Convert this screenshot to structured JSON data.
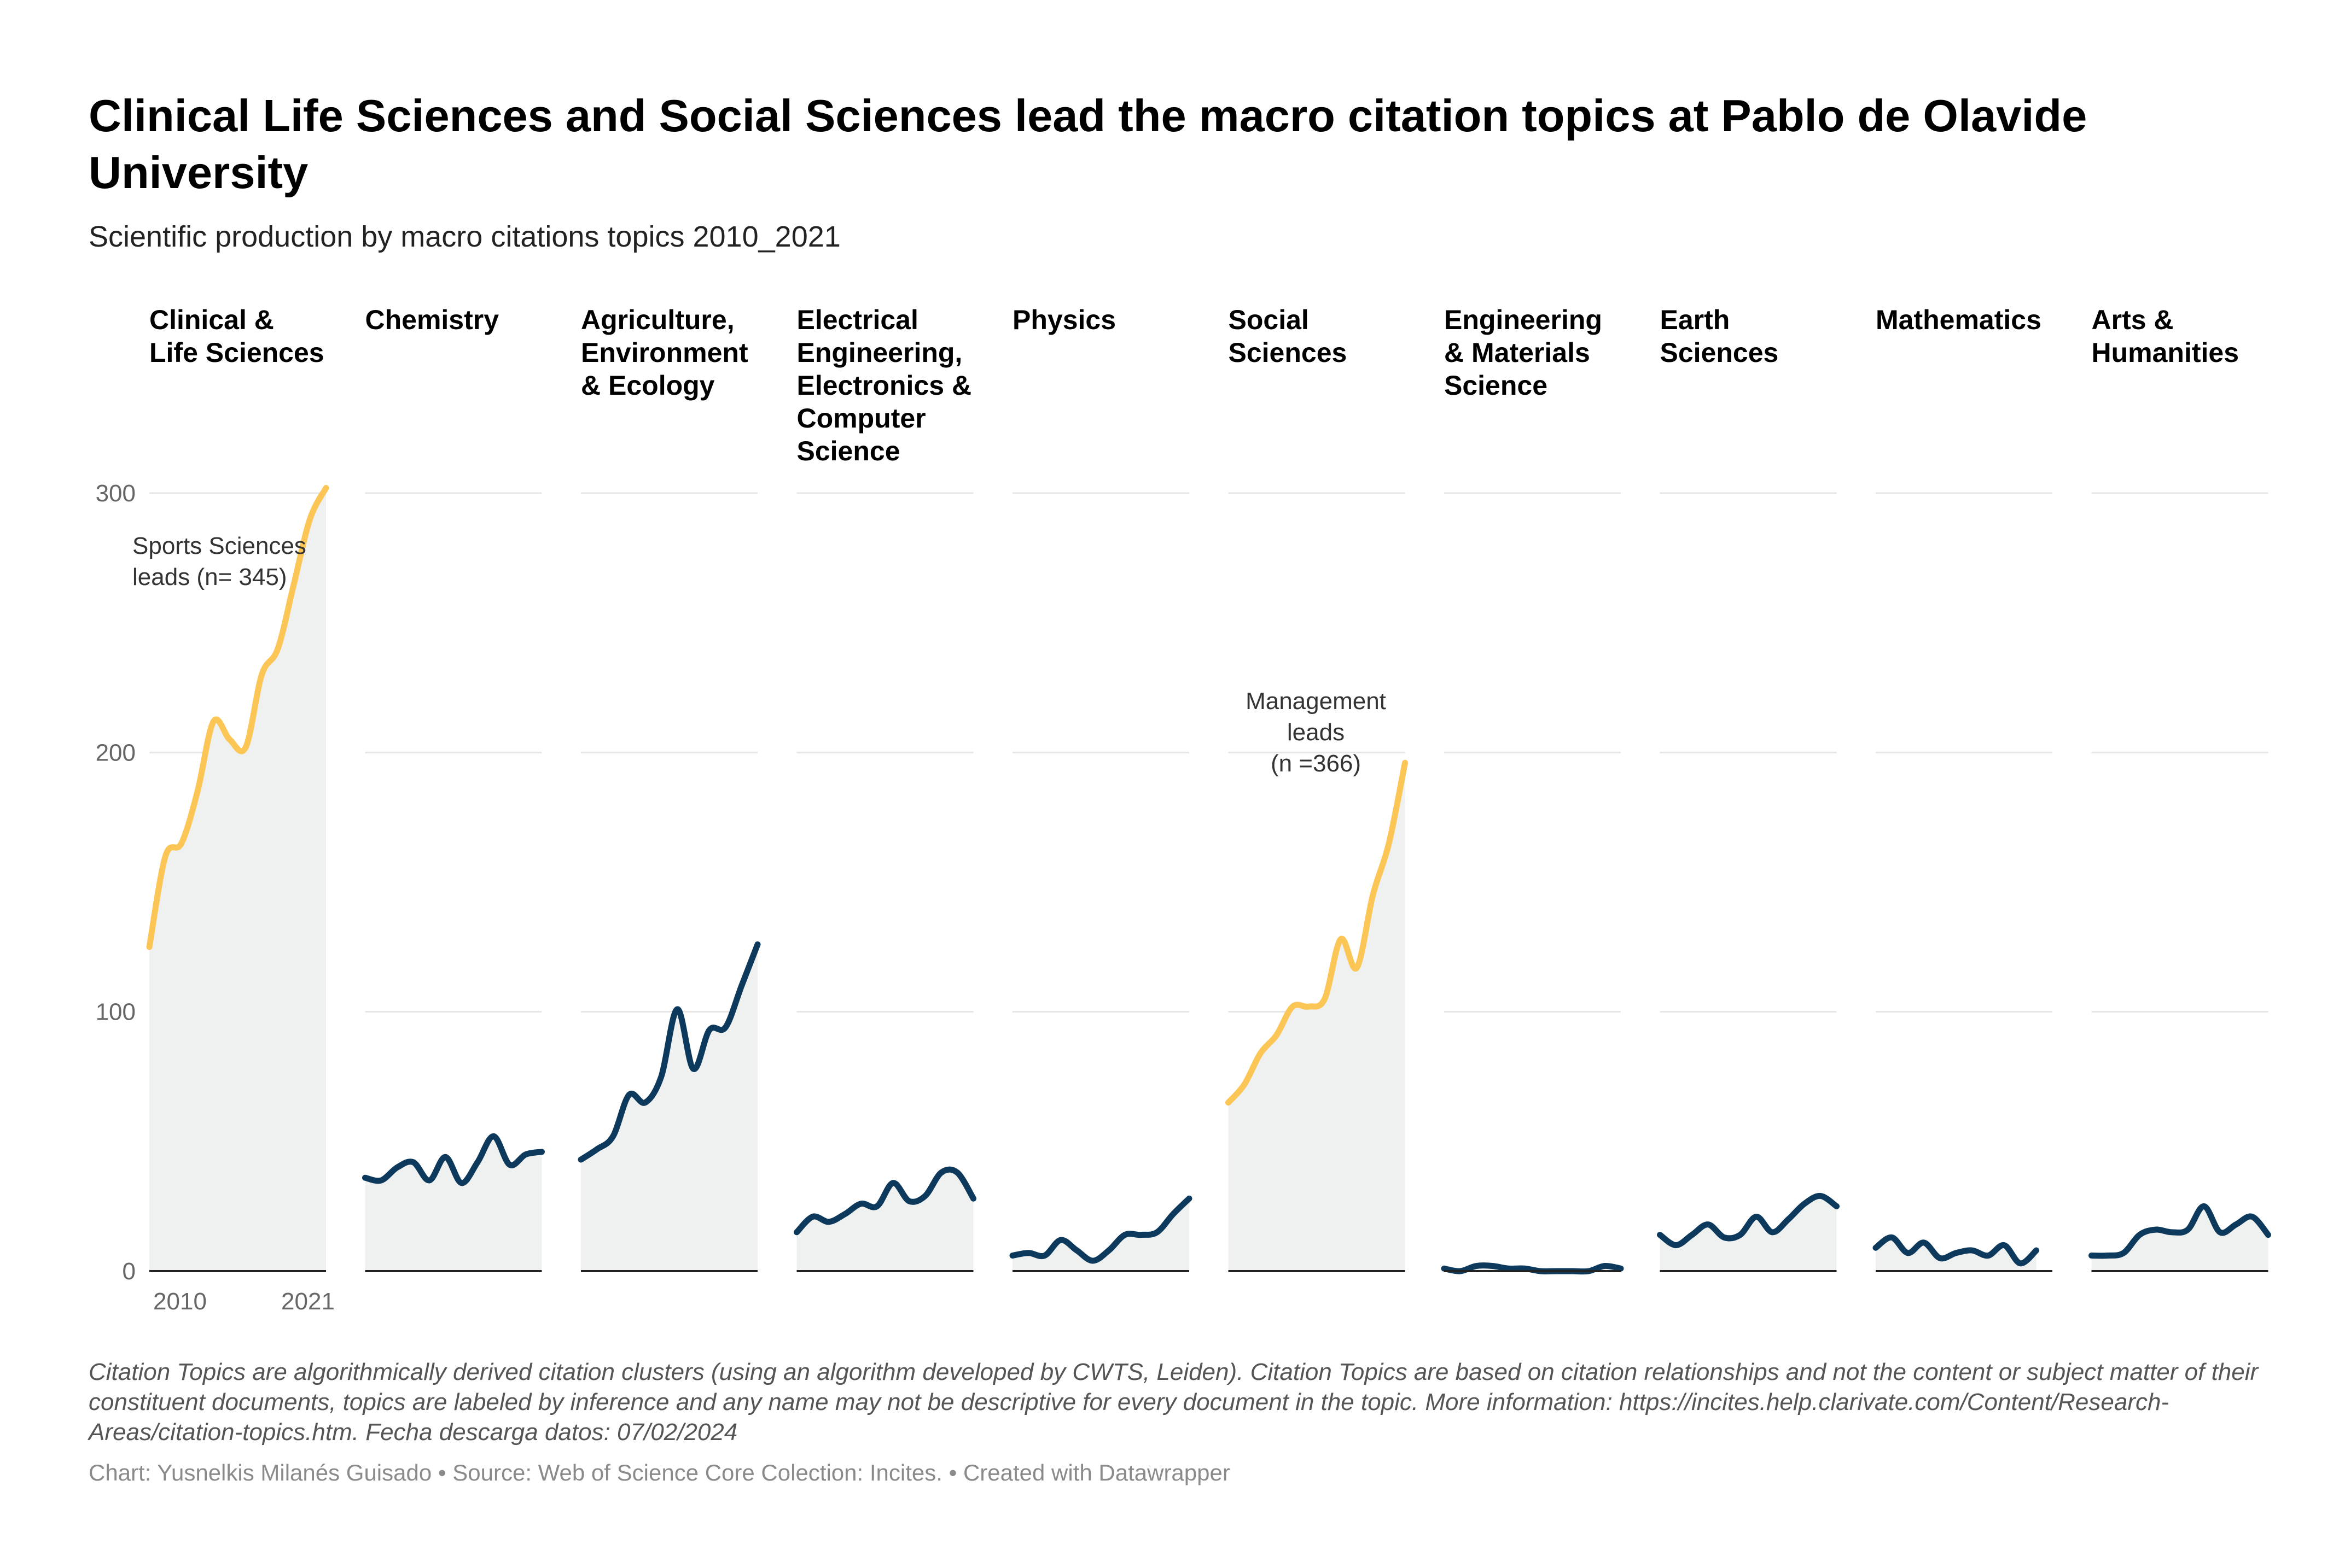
{
  "title": "Clinical Life Sciences and Social Sciences lead the macro citation topics at Pablo de Olavide University",
  "subtitle": "Scientific production by macro citations topics 2010_2021",
  "colors": {
    "highlight": "#fcc656",
    "normal": "#0d3a5c",
    "area": "#eff0f0",
    "grid": "#e6e6e6",
    "axis": "#222222"
  },
  "chart_data": {
    "type": "area",
    "layout": "small-multiples",
    "x": [
      2010,
      2011,
      2012,
      2013,
      2014,
      2015,
      2016,
      2017,
      2018,
      2019,
      2020,
      2021
    ],
    "x_tick_labels": [
      "2010",
      "2021"
    ],
    "ylim": [
      0,
      300
    ],
    "y_ticks": [
      0,
      100,
      200,
      300
    ],
    "grid": true,
    "panels": [
      {
        "name": "Clinical &\nLife Sciences",
        "highlight": true,
        "values": [
          125,
          160,
          165,
          185,
          212,
          205,
          202,
          230,
          240,
          265,
          290,
          302
        ],
        "annotation": [
          "Sports Sciences",
          "leads (n= 345)"
        ]
      },
      {
        "name": "Chemistry",
        "highlight": false,
        "values": [
          36,
          35,
          40,
          42,
          35,
          44,
          34,
          42,
          52,
          41,
          45,
          46
        ]
      },
      {
        "name": "Agriculture,\nEnvironment\n& Ecology",
        "highlight": false,
        "values": [
          43,
          47,
          52,
          68,
          65,
          75,
          101,
          78,
          93,
          94,
          110,
          126
        ]
      },
      {
        "name": " Electrical\nEngineering,\nElectronics &\nComputer\nScience",
        "highlight": false,
        "values": [
          15,
          21,
          19,
          22,
          26,
          25,
          34,
          27,
          29,
          38,
          38,
          28
        ]
      },
      {
        "name": "Physics",
        "highlight": false,
        "values": [
          6,
          7,
          6,
          12,
          8,
          4,
          8,
          14,
          14,
          15,
          22,
          28
        ]
      },
      {
        "name": "Social\nSciences",
        "highlight": true,
        "values": [
          65,
          72,
          84,
          91,
          102,
          102,
          105,
          128,
          117,
          145,
          165,
          196
        ],
        "annotation": [
          "Management",
          "leads",
          "(n =366)"
        ]
      },
      {
        "name": "Engineering\n& Materials\nScience",
        "highlight": false,
        "values": [
          1,
          0,
          2,
          2,
          1,
          1,
          0,
          0,
          0,
          0,
          2,
          1
        ]
      },
      {
        "name": "Earth\nSciences",
        "highlight": false,
        "values": [
          14,
          10,
          14,
          18,
          13,
          14,
          21,
          15,
          20,
          26,
          29,
          25
        ]
      },
      {
        "name": "Mathematics",
        "highlight": false,
        "values": [
          9,
          13,
          7,
          11,
          5,
          7,
          8,
          6,
          10,
          3,
          8,
          null
        ]
      },
      {
        "name": "Arts &\nHumanities",
        "highlight": false,
        "values": [
          6,
          6,
          7,
          14,
          16,
          15,
          16,
          25,
          15,
          18,
          21,
          14
        ]
      }
    ]
  },
  "notes": "Citation Topics are algorithmically derived citation clusters (using an algorithm developed by CWTS, Leiden). Citation Topics are based on citation relationships and not the content or subject matter of their constituent documents, topics are labeled by inference and any name may not be descriptive for every document in the topic. More information: https://incites.help.clarivate.com/Content/Research-Areas/citation-topics.htm. Fecha descarga datos: 07/02/2024",
  "footer": "Chart: Yusnelkis Milanés Guisado • Source: Web of Science Core Colection: Incites.  • Created with Datawrapper"
}
